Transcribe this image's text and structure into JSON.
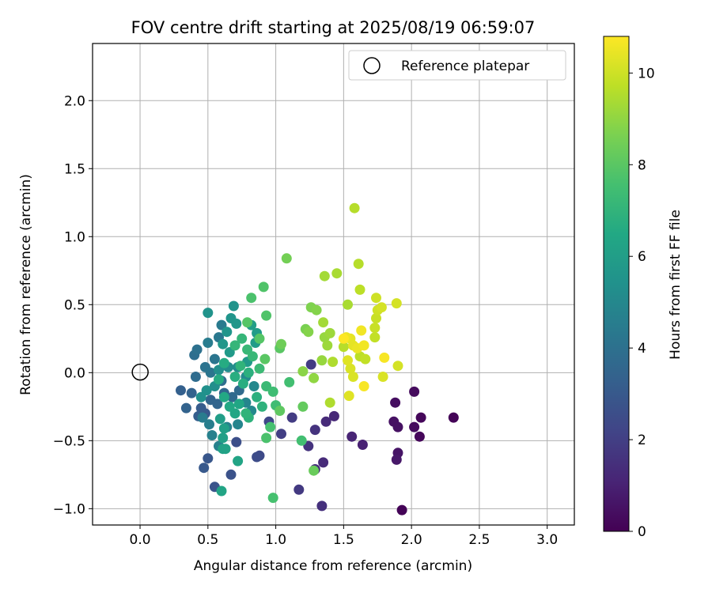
{
  "chart_data": {
    "type": "scatter",
    "title": "FOV centre drift starting at 2025/08/19 06:59:07",
    "xlabel": "Angular distance from reference (arcmin)",
    "ylabel": "Rotation from reference (arcmin)",
    "xlim": [
      -0.35,
      3.2
    ],
    "ylim": [
      -1.12,
      2.42
    ],
    "xticks": [
      0.0,
      0.5,
      1.0,
      1.5,
      2.0,
      2.5,
      3.0
    ],
    "xtick_labels": [
      "0.0",
      "0.5",
      "1.0",
      "1.5",
      "2.0",
      "2.5",
      "3.0"
    ],
    "yticks": [
      -1.0,
      -0.5,
      0.0,
      0.5,
      1.0,
      1.5,
      2.0
    ],
    "ytick_labels": [
      "−1.0",
      "−0.5",
      "0.0",
      "0.5",
      "1.0",
      "1.5",
      "2.0"
    ],
    "grid": true,
    "legend_position": "top-right",
    "colormap": "viridis",
    "reference_point": {
      "label": "Reference platepar",
      "x": 0.0,
      "y": 0.0
    },
    "colorbar": {
      "label": "Hours from first FF file",
      "range": [
        0,
        10.8
      ],
      "ticks": [
        0,
        2,
        4,
        6,
        8,
        10
      ],
      "tick_labels": [
        "0",
        "2",
        "4",
        "6",
        "8",
        "10"
      ]
    },
    "series": [
      {
        "points": [
          {
            "x": 1.93,
            "y": -1.01,
            "t": 0.1
          },
          {
            "x": 2.31,
            "y": -0.33,
            "t": 0.1
          },
          {
            "x": 2.07,
            "y": -0.33,
            "t": 0.2
          },
          {
            "x": 2.06,
            "y": -0.47,
            "t": 0.2
          },
          {
            "x": 2.02,
            "y": -0.4,
            "t": 0.3
          },
          {
            "x": 2.02,
            "y": -0.14,
            "t": 0.3
          },
          {
            "x": 1.88,
            "y": -0.22,
            "t": 0.4
          },
          {
            "x": 1.87,
            "y": -0.36,
            "t": 0.5
          },
          {
            "x": 1.9,
            "y": -0.4,
            "t": 0.5
          },
          {
            "x": 1.9,
            "y": -0.59,
            "t": 0.6
          },
          {
            "x": 1.89,
            "y": -0.64,
            "t": 0.7
          },
          {
            "x": 1.64,
            "y": -0.53,
            "t": 1.0
          },
          {
            "x": 1.56,
            "y": -0.47,
            "t": 1.1
          },
          {
            "x": 1.43,
            "y": -0.32,
            "t": 1.2
          },
          {
            "x": 1.37,
            "y": -0.36,
            "t": 1.3
          },
          {
            "x": 1.35,
            "y": -0.66,
            "t": 1.3
          },
          {
            "x": 1.29,
            "y": -0.71,
            "t": 1.4
          },
          {
            "x": 1.34,
            "y": -0.98,
            "t": 1.5
          },
          {
            "x": 1.29,
            "y": -0.42,
            "t": 1.6
          },
          {
            "x": 1.24,
            "y": -0.54,
            "t": 1.6
          },
          {
            "x": 1.17,
            "y": -0.86,
            "t": 1.8
          },
          {
            "x": 1.12,
            "y": -0.33,
            "t": 1.9
          },
          {
            "x": 1.04,
            "y": -0.45,
            "t": 2.0
          },
          {
            "x": 1.26,
            "y": 0.06,
            "t": 1.9
          },
          {
            "x": 0.95,
            "y": -0.36,
            "t": 2.3
          },
          {
            "x": 0.88,
            "y": -0.61,
            "t": 2.4
          },
          {
            "x": 0.86,
            "y": -0.62,
            "t": 2.5
          },
          {
            "x": 0.71,
            "y": -0.51,
            "t": 2.6
          },
          {
            "x": 0.67,
            "y": -0.75,
            "t": 2.7
          },
          {
            "x": 0.55,
            "y": -0.84,
            "t": 2.8
          },
          {
            "x": 0.5,
            "y": -0.63,
            "t": 2.9
          },
          {
            "x": 0.47,
            "y": -0.7,
            "t": 3.0
          },
          {
            "x": 0.48,
            "y": -0.3,
            "t": 3.0
          },
          {
            "x": 0.45,
            "y": -0.26,
            "t": 3.1
          },
          {
            "x": 0.43,
            "y": -0.32,
            "t": 3.2
          },
          {
            "x": 0.3,
            "y": -0.13,
            "t": 3.3
          },
          {
            "x": 0.34,
            "y": -0.26,
            "t": 3.4
          },
          {
            "x": 0.38,
            "y": -0.15,
            "t": 3.4
          },
          {
            "x": 0.52,
            "y": -0.2,
            "t": 3.5
          },
          {
            "x": 0.57,
            "y": -0.23,
            "t": 3.5
          },
          {
            "x": 0.62,
            "y": -0.15,
            "t": 3.6
          },
          {
            "x": 0.68,
            "y": -0.18,
            "t": 3.7
          },
          {
            "x": 0.73,
            "y": -0.13,
            "t": 3.7
          },
          {
            "x": 0.6,
            "y": -0.06,
            "t": 3.8
          },
          {
            "x": 0.41,
            "y": -0.03,
            "t": 3.8
          },
          {
            "x": 0.4,
            "y": 0.13,
            "t": 3.9
          },
          {
            "x": 0.42,
            "y": 0.17,
            "t": 4.0
          },
          {
            "x": 0.48,
            "y": 0.04,
            "t": 4.1
          },
          {
            "x": 0.52,
            "y": 0.0,
            "t": 4.2
          },
          {
            "x": 0.55,
            "y": 0.1,
            "t": 4.2
          },
          {
            "x": 0.58,
            "y": 0.26,
            "t": 4.3
          },
          {
            "x": 0.6,
            "y": 0.35,
            "t": 4.4
          },
          {
            "x": 0.5,
            "y": 0.22,
            "t": 4.5
          },
          {
            "x": 0.46,
            "y": -0.33,
            "t": 4.5
          },
          {
            "x": 0.51,
            "y": -0.38,
            "t": 4.6
          },
          {
            "x": 0.53,
            "y": -0.46,
            "t": 4.7
          },
          {
            "x": 0.58,
            "y": -0.54,
            "t": 4.7
          },
          {
            "x": 0.64,
            "y": -0.4,
            "t": 4.8
          },
          {
            "x": 0.72,
            "y": -0.38,
            "t": 4.9
          },
          {
            "x": 0.78,
            "y": -0.22,
            "t": 4.9
          },
          {
            "x": 0.82,
            "y": -0.28,
            "t": 5.0
          },
          {
            "x": 0.84,
            "y": -0.1,
            "t": 5.0
          },
          {
            "x": 0.78,
            "y": -0.03,
            "t": 5.1
          },
          {
            "x": 0.72,
            "y": 0.04,
            "t": 5.2
          },
          {
            "x": 0.65,
            "y": 0.04,
            "t": 5.2
          },
          {
            "x": 0.58,
            "y": 0.02,
            "t": 5.3
          },
          {
            "x": 0.55,
            "y": -0.1,
            "t": 5.3
          },
          {
            "x": 0.49,
            "y": -0.13,
            "t": 5.4
          },
          {
            "x": 0.45,
            "y": -0.18,
            "t": 5.4
          },
          {
            "x": 0.5,
            "y": 0.44,
            "t": 5.5
          },
          {
            "x": 0.69,
            "y": 0.49,
            "t": 5.5
          },
          {
            "x": 0.67,
            "y": 0.4,
            "t": 5.6
          },
          {
            "x": 0.64,
            "y": 0.3,
            "t": 5.6
          },
          {
            "x": 0.71,
            "y": 0.36,
            "t": 5.7
          },
          {
            "x": 0.61,
            "y": 0.21,
            "t": 5.7
          },
          {
            "x": 0.66,
            "y": 0.15,
            "t": 5.8
          },
          {
            "x": 0.79,
            "y": 0.08,
            "t": 5.8
          },
          {
            "x": 0.85,
            "y": 0.22,
            "t": 5.9
          },
          {
            "x": 0.86,
            "y": 0.29,
            "t": 5.9
          },
          {
            "x": 0.82,
            "y": 0.35,
            "t": 6.0
          },
          {
            "x": 0.59,
            "y": -0.34,
            "t": 6.0
          },
          {
            "x": 0.62,
            "y": -0.41,
            "t": 6.1
          },
          {
            "x": 0.61,
            "y": -0.48,
            "t": 6.1
          },
          {
            "x": 0.61,
            "y": -0.56,
            "t": 6.2
          },
          {
            "x": 0.63,
            "y": -0.56,
            "t": 6.2
          },
          {
            "x": 0.6,
            "y": -0.87,
            "t": 6.3
          },
          {
            "x": 0.72,
            "y": -0.65,
            "t": 6.3
          },
          {
            "x": 0.7,
            "y": -0.3,
            "t": 6.4
          },
          {
            "x": 0.73,
            "y": -0.23,
            "t": 6.4
          },
          {
            "x": 0.66,
            "y": -0.25,
            "t": 6.5
          },
          {
            "x": 0.62,
            "y": -0.18,
            "t": 6.5
          },
          {
            "x": 0.58,
            "y": -0.05,
            "t": 6.6
          },
          {
            "x": 0.62,
            "y": 0.07,
            "t": 6.6
          },
          {
            "x": 0.7,
            "y": -0.03,
            "t": 6.7
          },
          {
            "x": 0.76,
            "y": -0.08,
            "t": 6.7
          },
          {
            "x": 0.8,
            "y": 0.0,
            "t": 6.8
          },
          {
            "x": 0.86,
            "y": -0.18,
            "t": 6.8
          },
          {
            "x": 0.9,
            "y": -0.25,
            "t": 6.9
          },
          {
            "x": 0.8,
            "y": -0.33,
            "t": 6.9
          },
          {
            "x": 0.78,
            "y": -0.3,
            "t": 7.0
          },
          {
            "x": 0.74,
            "y": 0.05,
            "t": 7.0
          },
          {
            "x": 0.7,
            "y": 0.2,
            "t": 7.1
          },
          {
            "x": 0.75,
            "y": 0.25,
            "t": 7.1
          },
          {
            "x": 0.79,
            "y": 0.17,
            "t": 7.2
          },
          {
            "x": 0.83,
            "y": 0.12,
            "t": 7.2
          },
          {
            "x": 0.88,
            "y": 0.03,
            "t": 7.3
          },
          {
            "x": 0.93,
            "y": -0.1,
            "t": 7.3
          },
          {
            "x": 0.98,
            "y": -0.14,
            "t": 7.4
          },
          {
            "x": 1.0,
            "y": -0.24,
            "t": 7.4
          },
          {
            "x": 1.1,
            "y": -0.07,
            "t": 7.5
          },
          {
            "x": 1.19,
            "y": -0.5,
            "t": 7.5
          },
          {
            "x": 0.98,
            "y": -0.92,
            "t": 7.6
          },
          {
            "x": 0.96,
            "y": -0.4,
            "t": 7.6
          },
          {
            "x": 0.93,
            "y": -0.48,
            "t": 7.7
          },
          {
            "x": 0.82,
            "y": 0.55,
            "t": 7.7
          },
          {
            "x": 0.91,
            "y": 0.63,
            "t": 7.8
          },
          {
            "x": 0.93,
            "y": 0.42,
            "t": 7.8
          },
          {
            "x": 0.79,
            "y": 0.37,
            "t": 7.9
          },
          {
            "x": 0.88,
            "y": 0.25,
            "t": 7.9
          },
          {
            "x": 0.92,
            "y": 0.1,
            "t": 8.0
          },
          {
            "x": 1.03,
            "y": 0.18,
            "t": 8.0
          },
          {
            "x": 1.03,
            "y": -0.28,
            "t": 8.1
          },
          {
            "x": 1.2,
            "y": -0.25,
            "t": 8.2
          },
          {
            "x": 1.28,
            "y": -0.72,
            "t": 8.3
          },
          {
            "x": 1.04,
            "y": 0.21,
            "t": 8.4
          },
          {
            "x": 1.08,
            "y": 0.84,
            "t": 8.5
          },
          {
            "x": 1.22,
            "y": 0.32,
            "t": 8.6
          },
          {
            "x": 1.26,
            "y": 0.48,
            "t": 8.7
          },
          {
            "x": 1.3,
            "y": 0.46,
            "t": 8.8
          },
          {
            "x": 1.24,
            "y": 0.3,
            "t": 8.8
          },
          {
            "x": 1.2,
            "y": 0.01,
            "t": 8.9
          },
          {
            "x": 1.28,
            "y": -0.04,
            "t": 9.0
          },
          {
            "x": 1.34,
            "y": 0.09,
            "t": 9.1
          },
          {
            "x": 1.36,
            "y": 0.26,
            "t": 9.1
          },
          {
            "x": 1.38,
            "y": 0.2,
            "t": 9.2
          },
          {
            "x": 1.4,
            "y": 0.29,
            "t": 9.2
          },
          {
            "x": 1.35,
            "y": 0.37,
            "t": 9.3
          },
          {
            "x": 1.36,
            "y": 0.71,
            "t": 9.3
          },
          {
            "x": 1.45,
            "y": 0.73,
            "t": 9.4
          },
          {
            "x": 1.53,
            "y": 0.5,
            "t": 9.4
          },
          {
            "x": 1.42,
            "y": 0.08,
            "t": 9.5
          },
          {
            "x": 1.4,
            "y": -0.22,
            "t": 9.5
          },
          {
            "x": 1.5,
            "y": 0.19,
            "t": 9.6
          },
          {
            "x": 1.58,
            "y": 1.21,
            "t": 9.6
          },
          {
            "x": 1.61,
            "y": 0.8,
            "t": 9.6
          },
          {
            "x": 1.62,
            "y": 0.61,
            "t": 9.7
          },
          {
            "x": 1.62,
            "y": 0.12,
            "t": 9.7
          },
          {
            "x": 1.66,
            "y": 0.1,
            "t": 9.8
          },
          {
            "x": 1.73,
            "y": 0.26,
            "t": 9.8
          },
          {
            "x": 1.73,
            "y": 0.33,
            "t": 9.9
          },
          {
            "x": 1.74,
            "y": 0.4,
            "t": 9.9
          },
          {
            "x": 1.75,
            "y": 0.46,
            "t": 10.0
          },
          {
            "x": 1.74,
            "y": 0.55,
            "t": 10.0
          },
          {
            "x": 1.78,
            "y": 0.48,
            "t": 10.1
          },
          {
            "x": 1.89,
            "y": 0.51,
            "t": 10.1
          },
          {
            "x": 1.9,
            "y": 0.05,
            "t": 10.1
          },
          {
            "x": 1.79,
            "y": -0.03,
            "t": 10.2
          },
          {
            "x": 1.55,
            "y": 0.03,
            "t": 10.2
          },
          {
            "x": 1.57,
            "y": -0.03,
            "t": 10.2
          },
          {
            "x": 1.54,
            "y": -0.17,
            "t": 10.3
          },
          {
            "x": 1.53,
            "y": 0.09,
            "t": 10.3
          },
          {
            "x": 1.57,
            "y": 0.2,
            "t": 10.4
          },
          {
            "x": 1.55,
            "y": 0.25,
            "t": 10.4
          },
          {
            "x": 1.52,
            "y": 0.26,
            "t": 10.5
          },
          {
            "x": 1.6,
            "y": 0.18,
            "t": 10.5
          },
          {
            "x": 1.63,
            "y": 0.31,
            "t": 10.6
          },
          {
            "x": 1.65,
            "y": 0.2,
            "t": 10.6
          },
          {
            "x": 1.65,
            "y": -0.1,
            "t": 10.7
          },
          {
            "x": 1.8,
            "y": 0.11,
            "t": 10.7
          },
          {
            "x": 1.5,
            "y": 0.25,
            "t": 10.8
          }
        ]
      }
    ]
  }
}
